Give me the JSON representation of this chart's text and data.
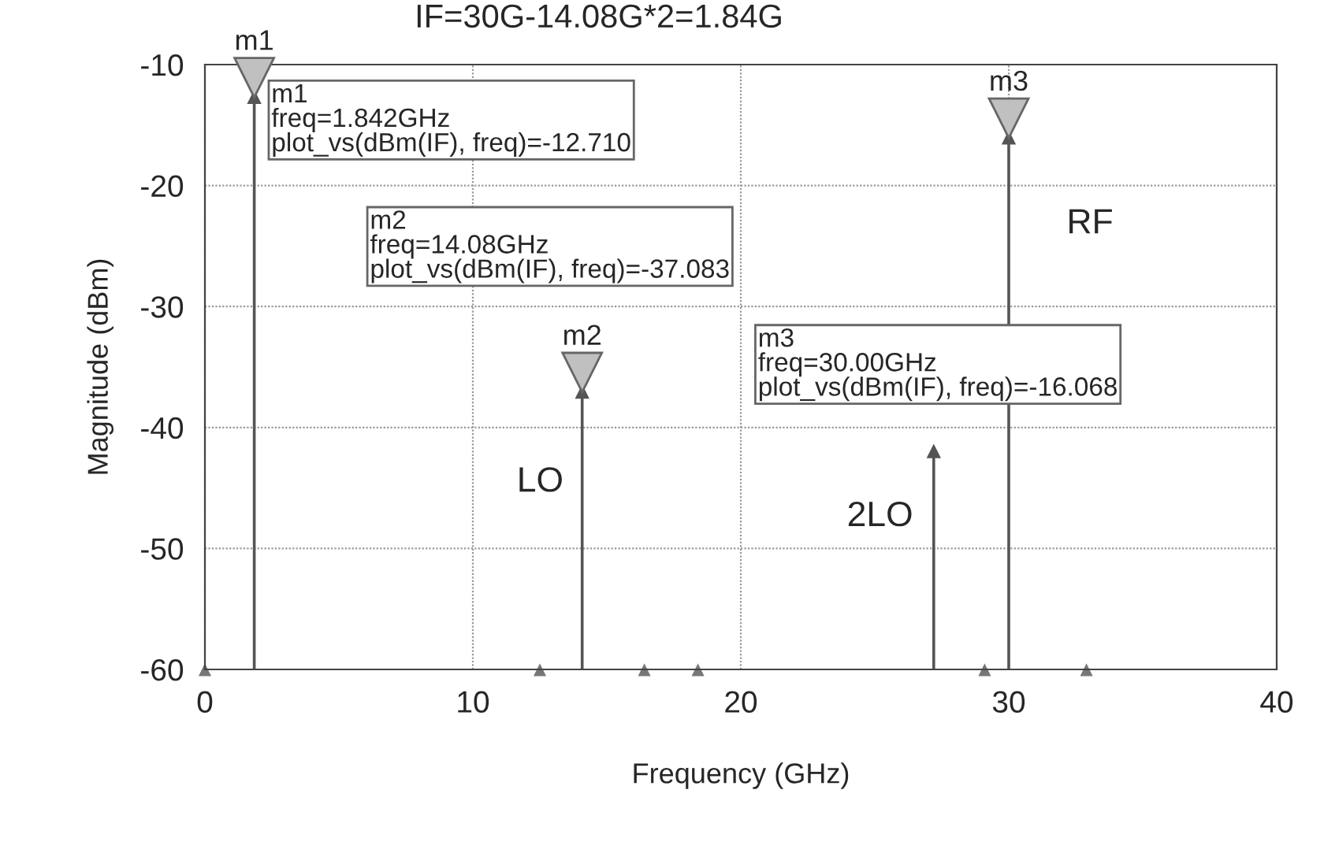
{
  "chart_data": {
    "type": "lollipop",
    "title": "IF=30G-14.08G*2=1.84G",
    "xlabel": "Frequency (GHz)",
    "ylabel": "Magnitude (dBm)",
    "series": [
      {
        "color": "#555555",
        "x": [
          1.842,
          14.08,
          27.2,
          30.0
        ],
        "values": [
          -12.71,
          -37.083,
          -42,
          -16.068
        ],
        "marker": "triangle"
      },
      {
        "type": "scatter",
        "color": "#777777",
        "x": [
          0,
          12.5,
          16.4,
          18.4,
          29.1,
          32.9
        ],
        "values": [
          -60,
          -60,
          -60,
          -60,
          -60,
          -60
        ],
        "marker": "triangle"
      }
    ],
    "xlim": [
      0,
      40
    ],
    "xticks": [
      0,
      10,
      20,
      30,
      40
    ],
    "ylim": [
      -60,
      -10
    ],
    "yticks": [
      -60,
      -50,
      -40,
      -30,
      -20,
      -10
    ],
    "grid": true,
    "annotations": [
      {
        "text": "m1",
        "x": 1.842,
        "y": -12.71
      },
      {
        "text": "m2",
        "x": 14.08,
        "y": -37.083
      },
      {
        "text": "m3",
        "x": 30.0,
        "y": -16.068
      },
      "m1\nfreq=1.842GHz\nplot_vs(dBm(IF), freq)=-12.710",
      "m2\nfreq=14.08GHz\nplot_vs(dBm(IF), freq)=-37.083",
      "m3\nfreq=30.00GHz\nplot_vs(dBm(IF), freq)=-16.068",
      "LO",
      "2LO",
      "RF"
    ]
  }
}
